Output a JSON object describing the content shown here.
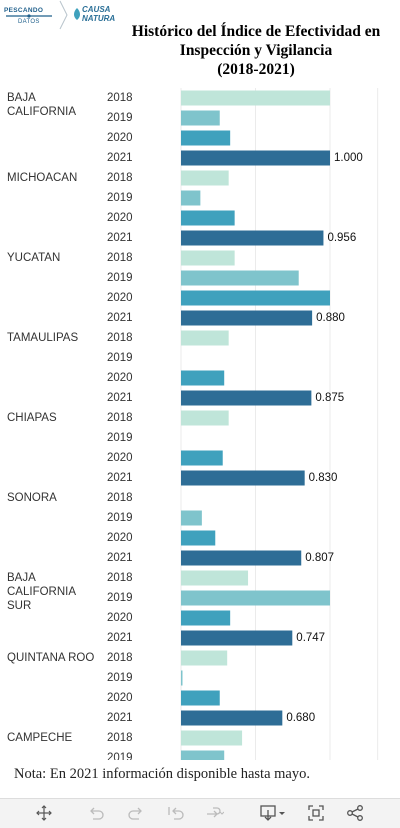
{
  "header": {
    "logo_pescando_line1": "PESCANDO",
    "logo_pescando_line2": "DATOS",
    "logo_causa_line1": "CAUSA",
    "logo_causa_line2": "NATURA",
    "title_lines": [
      "Histórico del Índice de Efectividad en",
      "Inspección y Vigilancia",
      "(2018-2021)"
    ]
  },
  "note": "Nota: En 2021 información disponible hasta mayo.",
  "colors": {
    "2018": "#bfe5d9",
    "2019": "#7fc4cc",
    "2020": "#3fa1bd",
    "2021": "#2e6d96"
  },
  "toolbar": {
    "icons": [
      "move-icon",
      "undo-icon",
      "redo-icon",
      "revert-icon",
      "refresh-icon",
      "download-icon",
      "fullscreen-icon",
      "share-icon"
    ]
  },
  "chart_data": {
    "type": "bar",
    "orientation": "horizontal",
    "title": "Histórico del Índice de Efectividad en Inspección y Vigilancia (2018-2021)",
    "xlim": [
      0,
      1.3
    ],
    "grid": true,
    "states": [
      {
        "name": [
          "BAJA",
          "CALIFORNIA"
        ],
        "bars": [
          {
            "year": "2018",
            "value": 1.0
          },
          {
            "year": "2019",
            "value": 0.26
          },
          {
            "year": "2020",
            "value": 0.33
          },
          {
            "year": "2021",
            "value": 1.0,
            "label": "1.000"
          }
        ]
      },
      {
        "name": [
          "MICHOACAN"
        ],
        "bars": [
          {
            "year": "2018",
            "value": 0.32
          },
          {
            "year": "2019",
            "value": 0.13
          },
          {
            "year": "2020",
            "value": 0.36
          },
          {
            "year": "2021",
            "value": 0.956,
            "label": "0.956"
          }
        ]
      },
      {
        "name": [
          "YUCATAN"
        ],
        "bars": [
          {
            "year": "2018",
            "value": 0.36
          },
          {
            "year": "2019",
            "value": 0.79
          },
          {
            "year": "2020",
            "value": 1.0
          },
          {
            "year": "2021",
            "value": 0.88,
            "label": "0.880"
          }
        ]
      },
      {
        "name": [
          "TAMAULIPAS"
        ],
        "bars": [
          {
            "year": "2018",
            "value": 0.32
          },
          {
            "year": "2019",
            "value": null
          },
          {
            "year": "2020",
            "value": 0.29
          },
          {
            "year": "2021",
            "value": 0.875,
            "label": "0.875"
          }
        ]
      },
      {
        "name": [
          "CHIAPAS"
        ],
        "bars": [
          {
            "year": "2018",
            "value": 0.32
          },
          {
            "year": "2019",
            "value": null
          },
          {
            "year": "2020",
            "value": 0.28
          },
          {
            "year": "2021",
            "value": 0.83,
            "label": "0.830"
          }
        ]
      },
      {
        "name": [
          "SONORA"
        ],
        "bars": [
          {
            "year": "2018",
            "value": null
          },
          {
            "year": "2019",
            "value": 0.14
          },
          {
            "year": "2020",
            "value": 0.23
          },
          {
            "year": "2021",
            "value": 0.807,
            "label": "0.807"
          }
        ]
      },
      {
        "name": [
          "BAJA",
          "CALIFORNIA",
          "SUR"
        ],
        "bars": [
          {
            "year": "2018",
            "value": 0.45
          },
          {
            "year": "2019",
            "value": 1.0
          },
          {
            "year": "2020",
            "value": 0.33
          },
          {
            "year": "2021",
            "value": 0.747,
            "label": "0.747"
          }
        ]
      },
      {
        "name": [
          "QUINTANA ROO"
        ],
        "bars": [
          {
            "year": "2018",
            "value": 0.31
          },
          {
            "year": "2019",
            "value": 0.01
          },
          {
            "year": "2020",
            "value": 0.26
          },
          {
            "year": "2021",
            "value": 0.68,
            "label": "0.680"
          }
        ]
      },
      {
        "name": [
          "CAMPECHE"
        ],
        "bars": [
          {
            "year": "2018",
            "value": 0.41
          },
          {
            "year": "2019",
            "value": 0.29
          }
        ]
      }
    ]
  }
}
